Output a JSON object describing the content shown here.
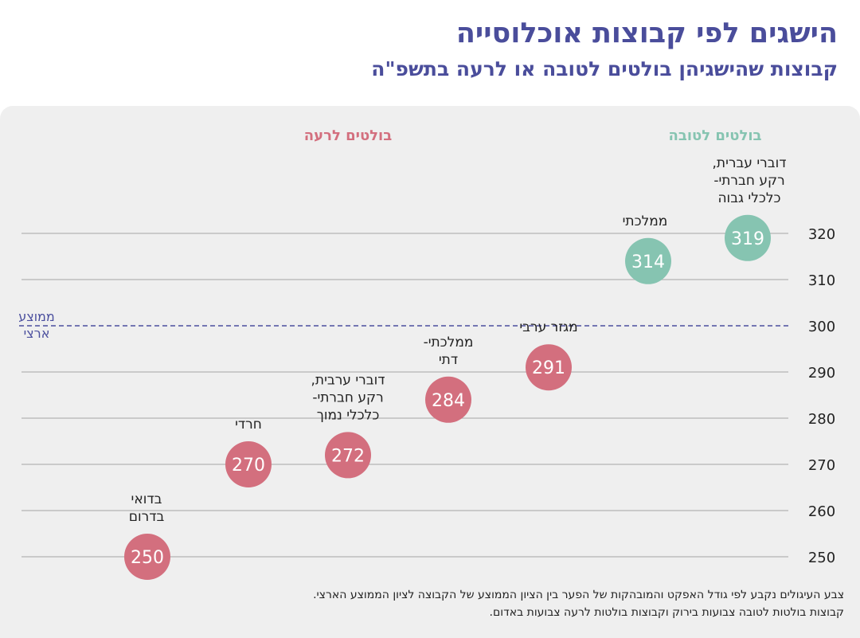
{
  "header": {
    "title": "הישגים לפי קבוצות אוכלוסייה",
    "subtitle": "קבוצות שהישגיהן בולטים לטובה או לרעה בתשפ\"ה"
  },
  "chart_data": {
    "type": "scatter",
    "title": "הישגים לפי קבוצות אוכלוסייה",
    "subtitle": "קבוצות שהישגיהן בולטים לטובה או לרעה בתשפ\"ה",
    "ylim": [
      245,
      325
    ],
    "yticks": [
      250,
      260,
      270,
      280,
      290,
      300,
      310,
      320
    ],
    "grid": true,
    "average": {
      "value": 300,
      "label": [
        "ממוצע",
        "ארצי"
      ]
    },
    "legend": {
      "good": "בולטים לטובה",
      "bad": "בולטים לרעה"
    },
    "colors": {
      "good": "#86c4b1",
      "bad": "#d36f7e",
      "average": "#4b4f9e",
      "grid": "#b5b5b5",
      "axis_text": "#222222"
    },
    "points": [
      {
        "x": 1,
        "value": 250,
        "group": "bad",
        "label": [
          "בדואי",
          "בדרום"
        ]
      },
      {
        "x": 2,
        "value": 270,
        "group": "bad",
        "label": [
          "חרדי"
        ]
      },
      {
        "x": 3,
        "value": 272,
        "group": "bad",
        "label": [
          "דוברי ערבית,",
          "רקע חברתי-",
          "כלכלי נמוך"
        ]
      },
      {
        "x": 4,
        "value": 284,
        "group": "bad",
        "label": [
          "ממלכתי-",
          "דתי"
        ]
      },
      {
        "x": 5,
        "value": 291,
        "group": "bad",
        "label": [
          "מגזר ערבי"
        ]
      },
      {
        "x": 6,
        "value": 314,
        "group": "good",
        "label": [
          "ממלכתי"
        ]
      },
      {
        "x": 7,
        "value": 319,
        "group": "good",
        "label": [
          "דוברי עברית,",
          "רקע חברתי-",
          "כלכלי גבוה"
        ]
      }
    ]
  },
  "footnote": {
    "lines": [
      "צבע העיגולים נקבע לפי גודל האפקט והמובהקות של הפער בין הציון הממוצע של הקבוצה לציון הממוצע הארצי.",
      "קבוצות בולטות לטובה צבועות בירוק וקבוצות בולטות לרעה צבועות באדום."
    ]
  }
}
